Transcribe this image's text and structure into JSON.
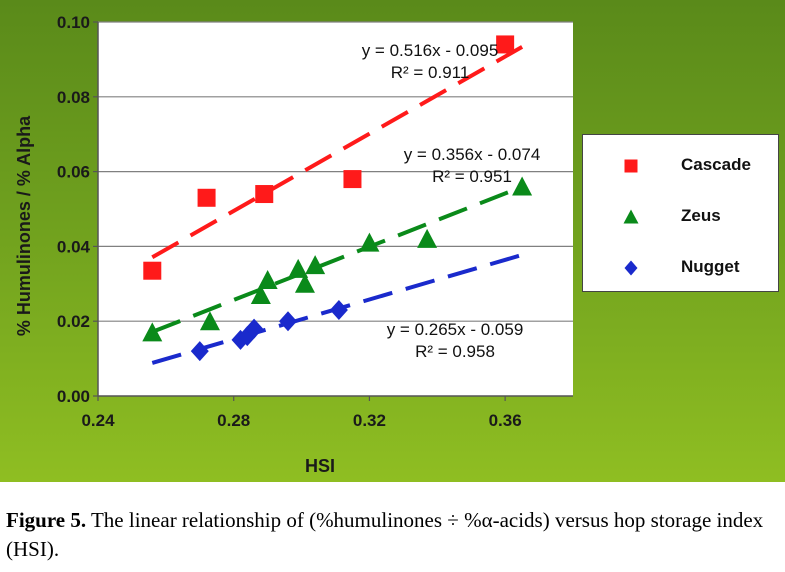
{
  "chart_data": {
    "type": "scatter",
    "xlabel": "HSI",
    "ylabel": "% Humulinones / % Alpha",
    "xlim": [
      0.24,
      0.38
    ],
    "ylim": [
      0,
      0.1
    ],
    "x_ticks": [
      "0.24",
      "0.28",
      "0.32",
      "0.36"
    ],
    "y_ticks": [
      "0.00",
      "0.02",
      "0.04",
      "0.06",
      "0.08",
      "0.10"
    ],
    "grid": "horizontal",
    "legend_position": "right",
    "series": [
      {
        "name": "Cascade",
        "marker": "square",
        "color": "#ff1a1a",
        "points": [
          [
            0.256,
            0.0335
          ],
          [
            0.272,
            0.053
          ],
          [
            0.289,
            0.054
          ],
          [
            0.315,
            0.058
          ],
          [
            0.36,
            0.094
          ]
        ],
        "trend": {
          "slope": 0.516,
          "intercept": -0.095,
          "x_range": [
            0.256,
            0.365
          ]
        },
        "equation": "y = 0.516x - 0.095",
        "r2": "R² = 0.911"
      },
      {
        "name": "Zeus",
        "marker": "triangle",
        "color": "#0a8a1a",
        "points": [
          [
            0.256,
            0.017
          ],
          [
            0.273,
            0.02
          ],
          [
            0.288,
            0.027
          ],
          [
            0.29,
            0.031
          ],
          [
            0.299,
            0.034
          ],
          [
            0.301,
            0.03
          ],
          [
            0.304,
            0.035
          ],
          [
            0.32,
            0.041
          ],
          [
            0.337,
            0.042
          ],
          [
            0.365,
            0.056
          ]
        ],
        "trend": {
          "slope": 0.356,
          "intercept": -0.074,
          "x_range": [
            0.256,
            0.365
          ]
        },
        "equation": "y = 0.356x - 0.074",
        "r2": "R² = 0.951"
      },
      {
        "name": "Nugget",
        "marker": "diamond",
        "color": "#1a2acc",
        "points": [
          [
            0.27,
            0.012
          ],
          [
            0.282,
            0.015
          ],
          [
            0.284,
            0.016
          ],
          [
            0.286,
            0.018
          ],
          [
            0.296,
            0.02
          ],
          [
            0.311,
            0.023
          ]
        ],
        "trend": {
          "slope": 0.265,
          "intercept": -0.059,
          "x_range": [
            0.256,
            0.365
          ]
        },
        "equation": "y = 0.265x - 0.059",
        "r2": "R² = 0.958"
      }
    ]
  },
  "caption": {
    "label": "Figure 5.",
    "text": " The linear relationship of (%humulinones ÷ %α-acids) versus hop storage index (HSI)."
  }
}
